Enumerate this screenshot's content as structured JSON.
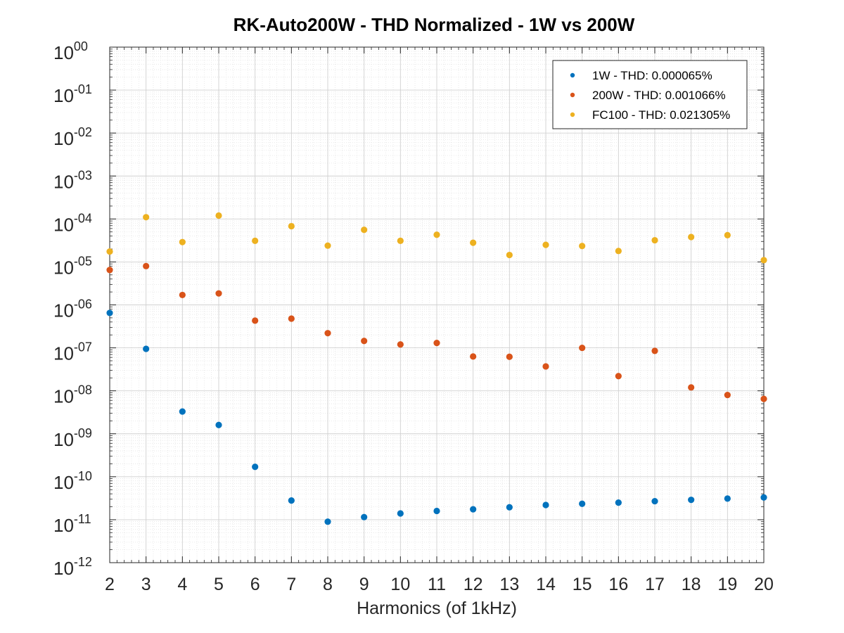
{
  "chart_data": {
    "type": "scatter",
    "title": "RK-Auto200W - THD Normalized - 1W vs 200W",
    "xlabel": "Harmonics (of 1kHz)",
    "ylabel": "",
    "y_scale": "log",
    "xlim": [
      2,
      20
    ],
    "ylim": [
      1e-12,
      1
    ],
    "grid": "major and minor",
    "legend_position": "top-right",
    "x_ticks": [
      2,
      3,
      4,
      5,
      6,
      7,
      8,
      9,
      10,
      11,
      12,
      13,
      14,
      15,
      16,
      17,
      18,
      19,
      20
    ],
    "y_ticks": [
      {
        "value": 1.0,
        "base": "10",
        "exp": "00"
      },
      {
        "value": 0.1,
        "base": "10",
        "exp": "-01"
      },
      {
        "value": 0.01,
        "base": "10",
        "exp": "-02"
      },
      {
        "value": 0.001,
        "base": "10",
        "exp": "-03"
      },
      {
        "value": 0.0001,
        "base": "10",
        "exp": "-04"
      },
      {
        "value": 1e-05,
        "base": "10",
        "exp": "-05"
      },
      {
        "value": 1e-06,
        "base": "10",
        "exp": "-06"
      },
      {
        "value": 1e-07,
        "base": "10",
        "exp": "-07"
      },
      {
        "value": 1e-08,
        "base": "10",
        "exp": "-08"
      },
      {
        "value": 1e-09,
        "base": "10",
        "exp": "-09"
      },
      {
        "value": 1e-10,
        "base": "10",
        "exp": "-10"
      },
      {
        "value": 1e-11,
        "base": "10",
        "exp": "-11"
      },
      {
        "value": 1e-12,
        "base": "10",
        "exp": "-12"
      }
    ],
    "x": [
      2,
      3,
      4,
      5,
      6,
      7,
      8,
      9,
      10,
      11,
      12,
      13,
      14,
      15,
      16,
      17,
      18,
      19,
      20
    ],
    "series": [
      {
        "name": "1W - THD: 0.000065%",
        "color": "#0072BD",
        "values": [
          6.5e-07,
          9.5e-08,
          3.3e-09,
          1.6e-09,
          1.7e-10,
          2.8e-11,
          9e-12,
          1.15e-11,
          1.4e-11,
          1.6e-11,
          1.75e-11,
          1.95e-11,
          2.2e-11,
          2.35e-11,
          2.5e-11,
          2.7e-11,
          2.9e-11,
          3.1e-11,
          3.3e-11
        ]
      },
      {
        "name": "200W - THD: 0.001066%",
        "color": "#D95319",
        "values": [
          6.5e-06,
          8e-06,
          1.7e-06,
          1.85e-06,
          4.3e-07,
          4.8e-07,
          2.2e-07,
          1.45e-07,
          1.2e-07,
          1.3e-07,
          6.3e-08,
          6.2e-08,
          3.7e-08,
          1e-07,
          2.2e-08,
          8.5e-08,
          1.2e-08,
          8e-09,
          6.5e-09
        ]
      },
      {
        "name": "FC100 - THD: 0.021305%",
        "color": "#EDB120",
        "values": [
          1.75e-05,
          0.00011,
          2.9e-05,
          0.00012,
          3.1e-05,
          6.8e-05,
          2.4e-05,
          5.6e-05,
          3.1e-05,
          4.3e-05,
          2.8e-05,
          1.45e-05,
          2.5e-05,
          2.35e-05,
          1.8e-05,
          3.2e-05,
          3.8e-05,
          4.2e-05,
          1.1e-05
        ]
      }
    ]
  }
}
